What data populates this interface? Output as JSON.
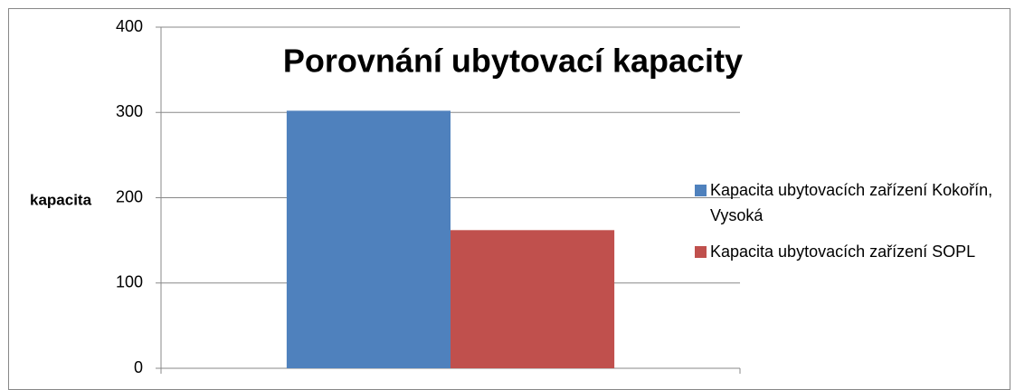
{
  "chart_data": {
    "type": "bar",
    "title": "Porovnání ubytovací kapacity",
    "y_label": "kapacita",
    "categories": [
      null
    ],
    "series": [
      {
        "name": "Kapacita ubytovacích zařízení Kokořín, Vysoká",
        "color": "#4f81bd",
        "values": [
          302
        ]
      },
      {
        "name": "Kapacita ubytovacích zařízení SOPL",
        "color": "#c0504d",
        "values": [
          162
        ]
      }
    ],
    "ylim": [
      0,
      400
    ],
    "yticks": [
      0,
      100,
      200,
      300,
      400
    ],
    "grid": true,
    "legend": "right"
  }
}
